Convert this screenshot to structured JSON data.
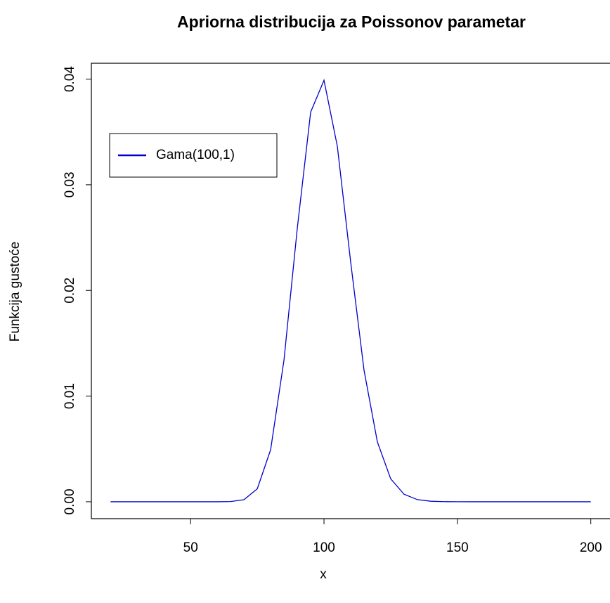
{
  "chart_data": {
    "type": "line",
    "title": "Apriorna distribucija za Poissonov parametar",
    "xlabel": "x",
    "ylabel": "Funkcija gustoće",
    "x": [
      20,
      25,
      30,
      35,
      40,
      45,
      50,
      55,
      60,
      65,
      70,
      75,
      80,
      85,
      90,
      95,
      100,
      105,
      110,
      115,
      120,
      125,
      130,
      135,
      140,
      145,
      150,
      155,
      160,
      165,
      170,
      175,
      180,
      185,
      190,
      195,
      200
    ],
    "series": [
      {
        "name": "Gama(100,1)",
        "color": "#0000cd",
        "values": [
          0,
          0,
          0,
          0,
          0,
          0,
          0,
          0,
          0,
          1.9e-05,
          0.000197,
          0.00123,
          0.00493,
          0.0134,
          0.02591,
          0.03688,
          0.03989,
          0.03364,
          0.02268,
          0.01246,
          0.00567,
          0.00217,
          0.000711,
          0.000201,
          4.96e-05,
          1.08e-05,
          2e-06,
          0,
          0,
          0,
          0,
          0,
          0,
          0,
          0,
          0,
          0
        ]
      }
    ],
    "xlim": [
      12.8,
      207.2
    ],
    "xticks": [
      50,
      100,
      150,
      200
    ],
    "ylim": [
      -0.0016,
      0.0415
    ],
    "yticks": [
      {
        "value": 0,
        "label": "0.00"
      },
      0.01,
      0.02,
      0.03,
      0.04
    ],
    "legend": "upper left",
    "grid": false
  }
}
